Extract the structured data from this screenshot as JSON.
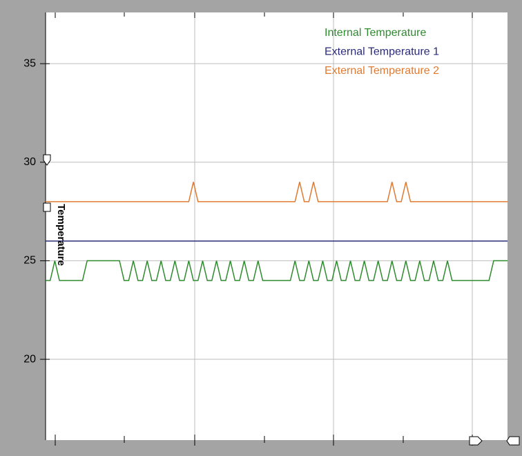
{
  "chart_data": {
    "type": "line",
    "ylabel": "Temperature",
    "ylim": [
      15.9,
      37.6
    ],
    "yticks": [
      20,
      25,
      30,
      35
    ],
    "grid": true,
    "legend": "top-right",
    "series": [
      {
        "name": "Internal Temperature",
        "color": "#2e8b2e",
        "values": [
          24,
          24,
          25,
          24,
          24,
          24,
          24,
          24,
          24,
          25,
          25,
          25,
          25,
          25,
          25,
          25,
          25,
          24,
          24,
          25,
          24,
          24,
          25,
          24,
          24,
          25,
          24,
          24,
          25,
          24,
          24,
          25,
          24,
          24,
          25,
          24,
          24,
          25,
          24,
          24,
          25,
          24,
          24,
          25,
          24,
          24,
          25,
          24,
          24,
          24,
          24,
          24,
          24,
          24,
          25,
          24,
          24,
          25,
          24,
          24,
          25,
          24,
          24,
          25,
          24,
          24,
          25,
          24,
          24,
          25,
          24,
          24,
          25,
          24,
          24,
          25,
          24,
          24,
          25,
          24,
          24,
          25,
          24,
          24,
          25,
          24,
          24,
          25,
          24,
          24,
          24,
          24,
          24,
          24,
          24,
          24,
          24,
          25,
          25,
          25,
          25
        ]
      },
      {
        "name": "External Temperature 1",
        "color": "#2a2a7a",
        "values": [
          26,
          26,
          26,
          26,
          26,
          26,
          26,
          26,
          26,
          26,
          26,
          26,
          26,
          26,
          26,
          26,
          26,
          26,
          26,
          26,
          26,
          26,
          26,
          26,
          26,
          26,
          26,
          26,
          26,
          26,
          26,
          26,
          26,
          26,
          26,
          26,
          26,
          26,
          26,
          26,
          26,
          26,
          26,
          26,
          26,
          26,
          26,
          26,
          26,
          26,
          26,
          26,
          26,
          26,
          26,
          26,
          26,
          26,
          26,
          26,
          26,
          26,
          26,
          26,
          26,
          26,
          26,
          26,
          26,
          26,
          26,
          26,
          26,
          26,
          26,
          26,
          26,
          26,
          26,
          26,
          26,
          26,
          26,
          26,
          26,
          26,
          26,
          26,
          26,
          26,
          26,
          26,
          26,
          26,
          26,
          26,
          26,
          26,
          26,
          26,
          26
        ]
      },
      {
        "name": "External Temperature 2",
        "color": "#e07a30",
        "values": [
          28,
          28,
          28,
          28,
          28,
          28,
          28,
          28,
          28,
          28,
          28,
          28,
          28,
          28,
          28,
          28,
          28,
          28,
          28,
          28,
          28,
          28,
          28,
          28,
          28,
          28,
          28,
          28,
          28,
          28,
          28,
          28,
          29,
          28,
          28,
          28,
          28,
          28,
          28,
          28,
          28,
          28,
          28,
          28,
          28,
          28,
          28,
          28,
          28,
          28,
          28,
          28,
          28,
          28,
          28,
          29,
          28,
          28,
          29,
          28,
          28,
          28,
          28,
          28,
          28,
          28,
          28,
          28,
          28,
          28,
          28,
          28,
          28,
          28,
          28,
          29,
          28,
          28,
          29,
          28,
          28,
          28,
          28,
          28,
          28,
          28,
          28,
          28,
          28,
          28,
          28,
          28,
          28,
          28,
          28,
          28,
          28,
          28,
          28,
          28,
          28
        ]
      }
    ]
  }
}
